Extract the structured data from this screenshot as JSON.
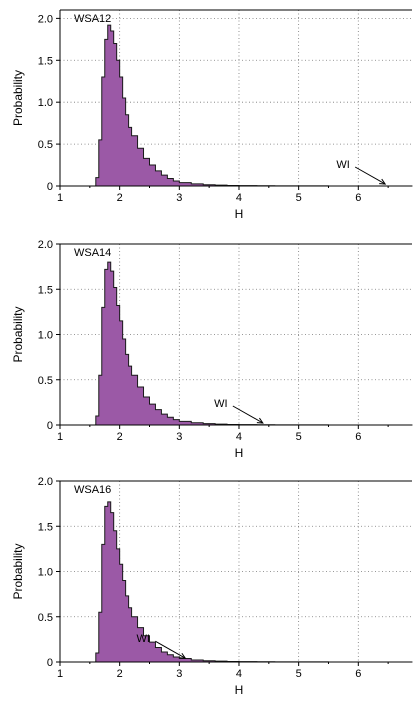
{
  "chart_data": [
    {
      "type": "area",
      "panel_label": "WSA12",
      "xlabel": "H",
      "ylabel": "Probability",
      "xlim": [
        1,
        6.9
      ],
      "ylim": [
        0,
        2.1
      ],
      "xticks": [
        "1",
        "2",
        "3",
        "4",
        "5",
        "6"
      ],
      "yticks": [
        "0",
        "0.5",
        "1.0",
        "1.5",
        "2.0"
      ],
      "grid": "dotted",
      "fill_color": "#9b59a6",
      "x": [
        1.55,
        1.6,
        1.65,
        1.7,
        1.75,
        1.8,
        1.85,
        1.9,
        1.95,
        2.0,
        2.05,
        2.1,
        2.15,
        2.2,
        2.3,
        2.4,
        2.5,
        2.6,
        2.7,
        2.8,
        2.9,
        3.0,
        3.2,
        3.4,
        3.6,
        3.8,
        4.0,
        4.3,
        4.6,
        5.0,
        5.5,
        6.0,
        6.9
      ],
      "y": [
        0.0,
        0.1,
        0.55,
        1.3,
        1.75,
        1.92,
        1.85,
        1.7,
        1.5,
        1.3,
        1.05,
        0.85,
        0.7,
        0.6,
        0.45,
        0.33,
        0.25,
        0.18,
        0.13,
        0.09,
        0.06,
        0.04,
        0.025,
        0.015,
        0.01,
        0.006,
        0.004,
        0.003,
        0.002,
        0.001,
        0.0005,
        0.0003,
        0.0
      ],
      "annotation": {
        "text": "WI",
        "x": 6.45,
        "y": 0.0
      }
    },
    {
      "type": "area",
      "panel_label": "WSA14",
      "xlabel": "H",
      "ylabel": "Probability",
      "xlim": [
        1,
        6.9
      ],
      "ylim": [
        0,
        2.0
      ],
      "xticks": [
        "1",
        "2",
        "3",
        "4",
        "5",
        "6"
      ],
      "yticks": [
        "0",
        "0.5",
        "1.0",
        "1.5",
        "2.0"
      ],
      "grid": "dotted",
      "fill_color": "#9b59a6",
      "x": [
        1.55,
        1.6,
        1.65,
        1.7,
        1.75,
        1.8,
        1.85,
        1.9,
        1.95,
        2.0,
        2.05,
        2.1,
        2.15,
        2.2,
        2.3,
        2.4,
        2.5,
        2.6,
        2.7,
        2.8,
        2.9,
        3.0,
        3.2,
        3.4,
        3.6,
        3.8,
        4.0,
        4.3,
        4.6,
        5.0,
        5.5,
        6.0,
        6.9
      ],
      "y": [
        0.0,
        0.1,
        0.55,
        1.3,
        1.72,
        1.8,
        1.7,
        1.52,
        1.32,
        1.15,
        0.95,
        0.78,
        0.65,
        0.55,
        0.42,
        0.31,
        0.23,
        0.17,
        0.12,
        0.085,
        0.06,
        0.04,
        0.025,
        0.015,
        0.01,
        0.006,
        0.004,
        0.003,
        0.002,
        0.001,
        0.0005,
        0.0003,
        0.0
      ],
      "annotation": {
        "text": "WI",
        "x": 4.4,
        "y": 0.0
      }
    },
    {
      "type": "area",
      "panel_label": "WSA16",
      "xlabel": "H",
      "ylabel": "Probability",
      "xlim": [
        1,
        6.9
      ],
      "ylim": [
        0,
        2.0
      ],
      "xticks": [
        "1",
        "2",
        "3",
        "4",
        "5",
        "6"
      ],
      "yticks": [
        "0",
        "0.5",
        "1.0",
        "1.5",
        "2.0"
      ],
      "grid": "dotted",
      "fill_color": "#9b59a6",
      "x": [
        1.55,
        1.6,
        1.65,
        1.7,
        1.75,
        1.8,
        1.85,
        1.9,
        1.95,
        2.0,
        2.05,
        2.1,
        2.15,
        2.2,
        2.3,
        2.4,
        2.5,
        2.6,
        2.7,
        2.8,
        2.9,
        3.0,
        3.2,
        3.4,
        3.6,
        3.8,
        4.0,
        4.3,
        4.6,
        5.0,
        5.5,
        6.0,
        6.9
      ],
      "y": [
        0.0,
        0.1,
        0.55,
        1.3,
        1.72,
        1.77,
        1.65,
        1.45,
        1.25,
        1.08,
        0.9,
        0.73,
        0.6,
        0.5,
        0.38,
        0.29,
        0.22,
        0.16,
        0.11,
        0.08,
        0.055,
        0.038,
        0.022,
        0.014,
        0.009,
        0.006,
        0.004,
        0.003,
        0.002,
        0.001,
        0.0005,
        0.0003,
        0.0
      ],
      "annotation": {
        "text": "WI",
        "x": 3.1,
        "y": 0.02
      }
    }
  ]
}
